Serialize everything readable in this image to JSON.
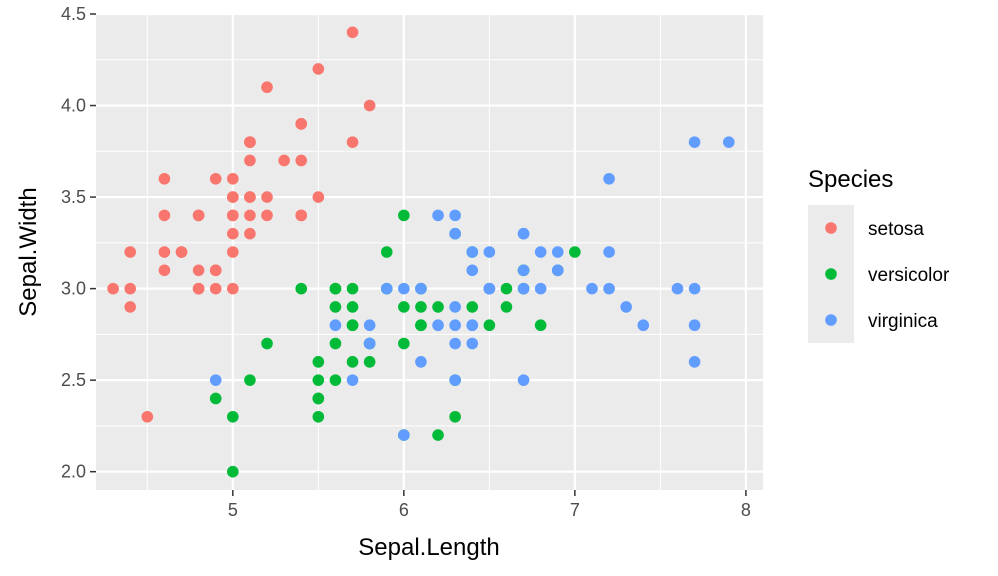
{
  "chart_data": {
    "type": "scatter",
    "title": "",
    "xlabel": "Sepal.Length",
    "ylabel": "Sepal.Width",
    "xlim": [
      4.2,
      8.1
    ],
    "ylim": [
      1.9,
      4.5
    ],
    "x_ticks": [
      5,
      6,
      7,
      8
    ],
    "y_ticks": [
      2.0,
      2.5,
      3.0,
      3.5,
      4.0,
      4.5
    ],
    "x_tick_labels": [
      "5",
      "6",
      "7",
      "8"
    ],
    "y_tick_labels": [
      "2.0",
      "2.5",
      "3.0",
      "3.5",
      "4.0",
      "4.5"
    ],
    "grid": true,
    "legend": {
      "title": "Species",
      "position": "right"
    },
    "series": [
      {
        "name": "setosa",
        "color": "#F8766D",
        "points": [
          [
            5.1,
            3.5
          ],
          [
            4.9,
            3.0
          ],
          [
            4.7,
            3.2
          ],
          [
            4.6,
            3.1
          ],
          [
            5.0,
            3.6
          ],
          [
            5.4,
            3.9
          ],
          [
            4.6,
            3.4
          ],
          [
            5.0,
            3.4
          ],
          [
            4.4,
            2.9
          ],
          [
            4.9,
            3.1
          ],
          [
            5.4,
            3.7
          ],
          [
            4.8,
            3.4
          ],
          [
            4.8,
            3.0
          ],
          [
            4.3,
            3.0
          ],
          [
            5.8,
            4.0
          ],
          [
            5.7,
            4.4
          ],
          [
            5.4,
            3.9
          ],
          [
            5.1,
            3.5
          ],
          [
            5.7,
            3.8
          ],
          [
            5.1,
            3.8
          ],
          [
            5.4,
            3.4
          ],
          [
            5.1,
            3.7
          ],
          [
            4.6,
            3.6
          ],
          [
            5.1,
            3.3
          ],
          [
            4.8,
            3.4
          ],
          [
            5.0,
            3.0
          ],
          [
            5.0,
            3.4
          ],
          [
            5.2,
            3.5
          ],
          [
            5.2,
            3.4
          ],
          [
            4.7,
            3.2
          ],
          [
            4.8,
            3.1
          ],
          [
            5.4,
            3.4
          ],
          [
            5.2,
            4.1
          ],
          [
            5.5,
            4.2
          ],
          [
            4.9,
            3.1
          ],
          [
            5.0,
            3.2
          ],
          [
            5.5,
            3.5
          ],
          [
            4.9,
            3.6
          ],
          [
            4.4,
            3.0
          ],
          [
            5.1,
            3.4
          ],
          [
            5.0,
            3.5
          ],
          [
            4.5,
            2.3
          ],
          [
            4.4,
            3.2
          ],
          [
            5.0,
            3.5
          ],
          [
            5.1,
            3.8
          ],
          [
            4.8,
            3.0
          ],
          [
            5.1,
            3.8
          ],
          [
            4.6,
            3.2
          ],
          [
            5.3,
            3.7
          ],
          [
            5.0,
            3.3
          ]
        ]
      },
      {
        "name": "versicolor",
        "color": "#00BA38",
        "points": [
          [
            7.0,
            3.2
          ],
          [
            6.4,
            3.2
          ],
          [
            6.9,
            3.1
          ],
          [
            5.5,
            2.3
          ],
          [
            6.5,
            2.8
          ],
          [
            5.7,
            2.8
          ],
          [
            6.3,
            3.3
          ],
          [
            4.9,
            2.4
          ],
          [
            6.6,
            2.9
          ],
          [
            5.2,
            2.7
          ],
          [
            5.0,
            2.0
          ],
          [
            5.9,
            3.0
          ],
          [
            6.0,
            2.2
          ],
          [
            6.1,
            2.9
          ],
          [
            5.6,
            2.9
          ],
          [
            6.7,
            3.1
          ],
          [
            5.6,
            3.0
          ],
          [
            5.8,
            2.7
          ],
          [
            6.2,
            2.2
          ],
          [
            5.6,
            2.5
          ],
          [
            5.9,
            3.2
          ],
          [
            6.1,
            2.8
          ],
          [
            6.3,
            2.5
          ],
          [
            6.1,
            2.8
          ],
          [
            6.4,
            2.9
          ],
          [
            6.6,
            3.0
          ],
          [
            6.8,
            2.8
          ],
          [
            6.7,
            3.0
          ],
          [
            6.0,
            2.9
          ],
          [
            5.7,
            2.6
          ],
          [
            5.5,
            2.4
          ],
          [
            5.5,
            2.4
          ],
          [
            5.8,
            2.7
          ],
          [
            6.0,
            2.7
          ],
          [
            5.4,
            3.0
          ],
          [
            6.0,
            3.4
          ],
          [
            6.7,
            3.1
          ],
          [
            6.3,
            2.3
          ],
          [
            5.6,
            3.0
          ],
          [
            5.5,
            2.5
          ],
          [
            5.5,
            2.6
          ],
          [
            6.1,
            3.0
          ],
          [
            5.8,
            2.6
          ],
          [
            5.0,
            2.3
          ],
          [
            5.6,
            2.7
          ],
          [
            5.7,
            3.0
          ],
          [
            5.7,
            2.9
          ],
          [
            6.2,
            2.9
          ],
          [
            5.1,
            2.5
          ],
          [
            5.7,
            2.8
          ]
        ]
      },
      {
        "name": "virginica",
        "color": "#619CFF",
        "points": [
          [
            6.3,
            3.3
          ],
          [
            5.8,
            2.7
          ],
          [
            7.1,
            3.0
          ],
          [
            6.3,
            2.9
          ],
          [
            6.5,
            3.0
          ],
          [
            7.6,
            3.0
          ],
          [
            4.9,
            2.5
          ],
          [
            7.3,
            2.9
          ],
          [
            6.7,
            2.5
          ],
          [
            7.2,
            3.6
          ],
          [
            6.5,
            3.2
          ],
          [
            6.4,
            2.7
          ],
          [
            6.8,
            3.0
          ],
          [
            5.7,
            2.5
          ],
          [
            5.8,
            2.8
          ],
          [
            6.4,
            3.2
          ],
          [
            6.5,
            3.0
          ],
          [
            7.7,
            3.8
          ],
          [
            7.7,
            2.6
          ],
          [
            6.0,
            2.2
          ],
          [
            6.9,
            3.2
          ],
          [
            5.6,
            2.8
          ],
          [
            7.7,
            2.8
          ],
          [
            6.3,
            2.7
          ],
          [
            6.7,
            3.3
          ],
          [
            7.2,
            3.2
          ],
          [
            6.2,
            2.8
          ],
          [
            6.1,
            3.0
          ],
          [
            6.4,
            2.8
          ],
          [
            7.2,
            3.0
          ],
          [
            7.4,
            2.8
          ],
          [
            7.9,
            3.8
          ],
          [
            6.4,
            2.8
          ],
          [
            6.3,
            2.8
          ],
          [
            6.1,
            2.6
          ],
          [
            7.7,
            3.0
          ],
          [
            6.3,
            3.4
          ],
          [
            6.4,
            3.1
          ],
          [
            6.0,
            3.0
          ],
          [
            6.9,
            3.1
          ],
          [
            6.7,
            3.1
          ],
          [
            6.9,
            3.1
          ],
          [
            5.8,
            2.7
          ],
          [
            6.8,
            3.2
          ],
          [
            6.7,
            3.3
          ],
          [
            6.7,
            3.0
          ],
          [
            6.3,
            2.5
          ],
          [
            6.5,
            3.0
          ],
          [
            6.2,
            3.4
          ],
          [
            5.9,
            3.0
          ]
        ]
      }
    ]
  },
  "colors": {
    "panel_background": "#EBEBEB",
    "grid_major": "#FFFFFF",
    "legend_key_background": "#EBEBEB"
  }
}
